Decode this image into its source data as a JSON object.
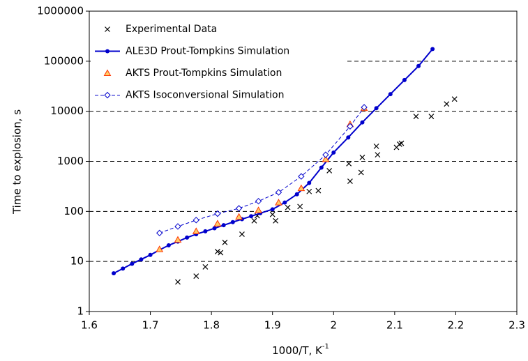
{
  "chart_data": {
    "type": "scatter",
    "xlabel": "1000/T, K",
    "xlabel_superscript": "-1",
    "ylabel": "Time to explosion, s",
    "xlim": [
      1.6,
      2.3
    ],
    "xticks": [
      1.6,
      1.7,
      1.8,
      1.9,
      2,
      2.1,
      2.2,
      2.3
    ],
    "ylim": [
      1,
      1000000
    ],
    "yticks": [
      1,
      10,
      100,
      1000,
      10000,
      100000,
      1000000
    ],
    "ylog": true,
    "grid": "y-dashed",
    "legend": "upper left",
    "series": [
      {
        "name": "Experimental Data",
        "color": "#000000",
        "marker": "x",
        "line": "none",
        "x": [
          1.745,
          1.775,
          1.79,
          1.81,
          1.815,
          1.822,
          1.85,
          1.87,
          1.875,
          1.9,
          1.905,
          1.925,
          1.945,
          1.96,
          1.975,
          1.993,
          2.025,
          2.027,
          2.045,
          2.047,
          2.07,
          2.072,
          2.103,
          2.108,
          2.111,
          2.135,
          2.16,
          2.185,
          2.198
        ],
        "values": [
          3.9,
          5.1,
          7.8,
          15.8,
          15,
          24,
          35,
          65,
          82,
          87,
          65,
          120,
          125,
          250,
          260,
          650,
          900,
          400,
          600,
          1200,
          2000,
          1350,
          1900,
          2200,
          2300,
          7900,
          7900,
          14000,
          17500
        ]
      },
      {
        "name": "ALE3D Prout-Tompkins Simulation",
        "color": "#0000cc",
        "marker": "dot",
        "line": "solid",
        "x": [
          1.64,
          1.655,
          1.67,
          1.685,
          1.7,
          1.715,
          1.73,
          1.745,
          1.76,
          1.775,
          1.79,
          1.805,
          1.82,
          1.835,
          1.85,
          1.865,
          1.88,
          1.9,
          1.92,
          1.94,
          1.96,
          1.98,
          2,
          2.024,
          2.047,
          2.07,
          2.093,
          2.116,
          2.139,
          2.162
        ],
        "values": [
          5.8,
          7.2,
          9,
          11,
          13.5,
          17,
          21,
          25,
          30,
          35,
          40,
          46,
          53,
          61,
          70,
          80,
          92,
          110,
          150,
          220,
          370,
          750,
          1500,
          3000,
          6000,
          11500,
          22000,
          42000,
          80000,
          175000
        ]
      },
      {
        "name": "AKTS Prout-Tompkins Simulation",
        "color": "#ff3300",
        "fill": "#ffcc66",
        "marker": "triangle",
        "line": "none",
        "x": [
          1.715,
          1.745,
          1.775,
          1.81,
          1.845,
          1.877,
          1.91,
          1.947,
          1.987,
          2.027,
          2.05
        ],
        "values": [
          17.5,
          27,
          40,
          57,
          78,
          105,
          150,
          290,
          1100,
          5500,
          11500
        ]
      },
      {
        "name": "AKTS Isoconversional Simulation",
        "color": "#0000cc",
        "marker": "diamond",
        "line": "dashed",
        "x": [
          1.715,
          1.745,
          1.775,
          1.81,
          1.845,
          1.877,
          1.91,
          1.947,
          1.987,
          2.027,
          2.05
        ],
        "values": [
          37,
          50,
          67,
          90,
          115,
          160,
          240,
          500,
          1350,
          5000,
          12000
        ]
      }
    ]
  }
}
